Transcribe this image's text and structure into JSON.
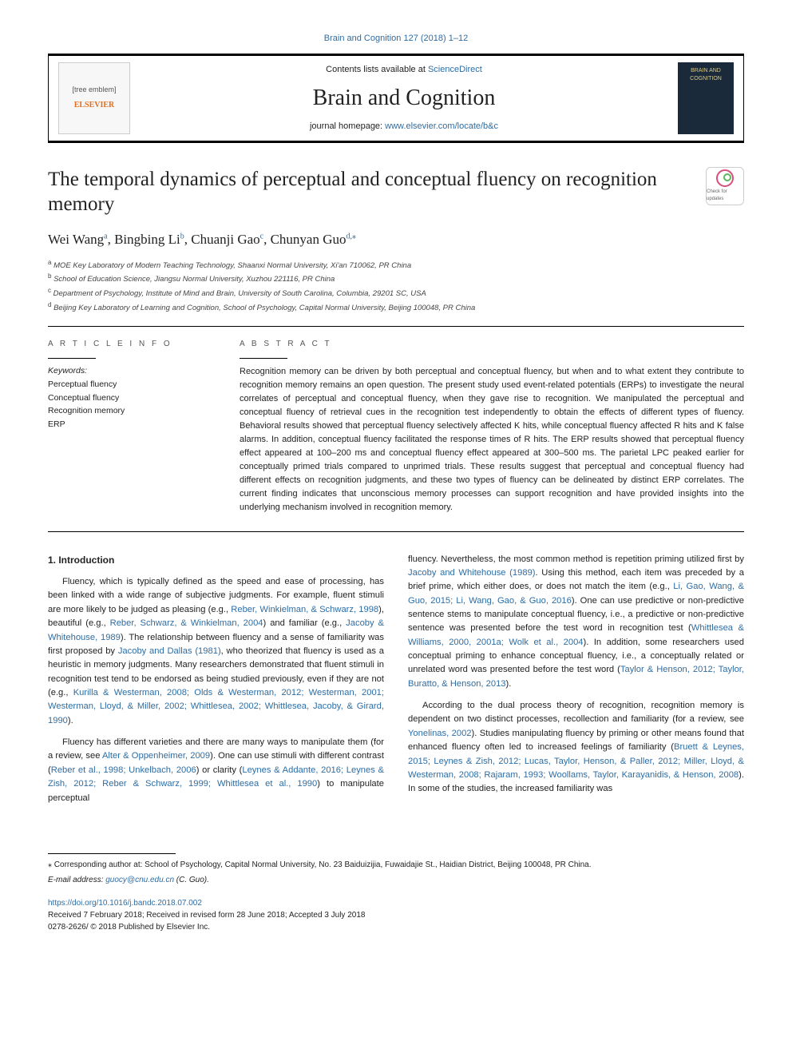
{
  "journal_ref": {
    "text": "Brain and Cognition 127 (2018) 1–12",
    "link_text": "Brain and Cognition 127 (2018) 1–12"
  },
  "header": {
    "contents_prefix": "Contents lists available at ",
    "contents_link": "ScienceDirect",
    "journal_title": "Brain and Cognition",
    "homepage_prefix": "journal homepage: ",
    "homepage_link": "www.elsevier.com/locate/b&c",
    "elsevier_tree": "[tree emblem]",
    "elsevier_brand": "ELSEVIER",
    "cover_text": "BRAIN AND COGNITION"
  },
  "check_updates_label": "Check for updates",
  "title": "The temporal dynamics of perceptual and conceptual fluency on recognition memory",
  "authors_html": {
    "a1": "Wei Wang",
    "a1_sup": "a",
    "a2": "Bingbing Li",
    "a2_sup": "b",
    "a3": "Chuanji Gao",
    "a3_sup": "c",
    "a4": "Chunyan Guo",
    "a4_sup": "d,",
    "a4_star": "⁎"
  },
  "affiliations": {
    "a": "MOE Key Laboratory of Modern Teaching Technology, Shaanxi Normal University, Xi'an 710062, PR China",
    "b": "School of Education Science, Jiangsu Normal University, Xuzhou 221116, PR China",
    "c": "Department of Psychology, Institute of Mind and Brain, University of South Carolina, Columbia, 29201 SC, USA",
    "d": "Beijing Key Laboratory of Learning and Cognition, School of Psychology, Capital Normal University, Beijing 100048, PR China"
  },
  "article_info_label": "A R T I C L E  I N F O",
  "abstract_label": "A B S T R A C T",
  "keywords_head": "Keywords:",
  "keywords": [
    "Perceptual fluency",
    "Conceptual fluency",
    "Recognition memory",
    "ERP"
  ],
  "abstract": "Recognition memory can be driven by both perceptual and conceptual fluency, but when and to what extent they contribute to recognition memory remains an open question. The present study used event-related potentials (ERPs) to investigate the neural correlates of perceptual and conceptual fluency, when they gave rise to recognition. We manipulated the perceptual and conceptual fluency of retrieval cues in the recognition test independently to obtain the effects of different types of fluency. Behavioral results showed that perceptual fluency selectively affected K hits, while conceptual fluency affected R hits and K false alarms. In addition, conceptual fluency facilitated the response times of R hits. The ERP results showed that perceptual fluency effect appeared at 100–200 ms and conceptual fluency effect appeared at 300–500 ms. The parietal LPC peaked earlier for conceptually primed trials compared to unprimed trials. These results suggest that perceptual and conceptual fluency had different effects on recognition judgments, and these two types of fluency can be delineated by distinct ERP correlates. The current finding indicates that unconscious memory processes can support recognition and have provided insights into the underlying mechanism involved in recognition memory.",
  "intro_heading": "1. Introduction",
  "col1_p1_pre": "Fluency, which is typically defined as the speed and ease of processing, has been linked with a wide range of subjective judgments. For example, fluent stimuli are more likely to be judged as pleasing (e.g., ",
  "col1_p1_l1": "Reber, Winkielman, & Schwarz, 1998",
  "col1_p1_m1": "), beautiful (e.g., ",
  "col1_p1_l2": "Reber, Schwarz, & Winkielman, 2004",
  "col1_p1_m2": ") and familiar (e.g., ",
  "col1_p1_l3": "Jacoby & Whitehouse, 1989",
  "col1_p1_m3": "). The relationship between fluency and a sense of familiarity was first proposed by ",
  "col1_p1_l4": "Jacoby and Dallas (1981)",
  "col1_p1_m4": ", who theorized that fluency is used as a heuristic in memory judgments. Many researchers demonstrated that fluent stimuli in recognition test tend to be endorsed as being studied previously, even if they are not (e.g., ",
  "col1_p1_l5": "Kurilla & Westerman, 2008; Olds & Westerman, 2012; Westerman, 2001; Westerman, Lloyd, & Miller, 2002; Whittlesea, 2002; Whittlesea, Jacoby, & Girard, 1990",
  "col1_p1_end": ").",
  "col1_p2_pre": "Fluency has different varieties and there are many ways to manipulate them (for a review, see ",
  "col1_p2_l1": "Alter & Oppenheimer, 2009",
  "col1_p2_m1": "). One can use stimuli with different contrast (",
  "col1_p2_l2": "Reber et al., 1998; Unkelbach, 2006",
  "col1_p2_m2": ") or clarity (",
  "col1_p2_l3": "Leynes & Addante, 2016; Leynes & Zish, 2012; Reber & Schwarz, 1999; Whittlesea et al., 1990",
  "col1_p2_end": ") to manipulate perceptual",
  "col2_p1_pre": "fluency. Nevertheless, the most common method is repetition priming utilized first by ",
  "col2_p1_l1": "Jacoby and Whitehouse (1989)",
  "col2_p1_m1": ". Using this method, each item was preceded by a brief prime, which either does, or does not match the item (e.g., ",
  "col2_p1_l2": "Li, Gao, Wang, & Guo, 2015; Li, Wang, Gao, & Guo, 2016",
  "col2_p1_m2": "). One can use predictive or non-predictive sentence stems to manipulate conceptual fluency, i.e., a predictive or non-predictive sentence was presented before the test word in recognition test (",
  "col2_p1_l3": "Whittlesea & Williams, 2000, 2001a; Wolk et al., 2004",
  "col2_p1_m3": "). In addition, some researchers used conceptual priming to enhance conceptual fluency, i.e., a conceptually related or unrelated word was presented before the test word (",
  "col2_p1_l4": "Taylor & Henson, 2012; Taylor, Buratto, & Henson, 2013",
  "col2_p1_end": ").",
  "col2_p2_pre": "According to the dual process theory of recognition, recognition memory is dependent on two distinct processes, recollection and familiarity (for a review, see ",
  "col2_p2_l1": "Yonelinas, 2002",
  "col2_p2_m1": "). Studies manipulating fluency by priming or other means found that enhanced fluency often led to increased feelings of familiarity (",
  "col2_p2_l2": "Bruett & Leynes, 2015; Leynes & Zish, 2012; Lucas, Taylor, Henson, & Paller, 2012; Miller, Lloyd, & Westerman, 2008; Rajaram, 1993; Woollams, Taylor, Karayanidis, & Henson, 2008",
  "col2_p2_end": "). In some of the studies, the increased familiarity was",
  "footer": {
    "corresp": "Corresponding author at: School of Psychology, Capital Normal University, No. 23 Baiduizijia, Fuwaidajie St., Haidian District, Beijing 100048, PR China.",
    "email_label": "E-mail address: ",
    "email": "guocy@cnu.edu.cn",
    "email_suffix": " (C. Guo).",
    "doi": "https://doi.org/10.1016/j.bandc.2018.07.002",
    "history": "Received 7 February 2018; Received in revised form 28 June 2018; Accepted 3 July 2018",
    "issn": "0278-2626/ © 2018 Published by Elsevier Inc."
  },
  "colors": {
    "link": "#2e6da4",
    "elsevier_orange": "#e36f1e"
  }
}
